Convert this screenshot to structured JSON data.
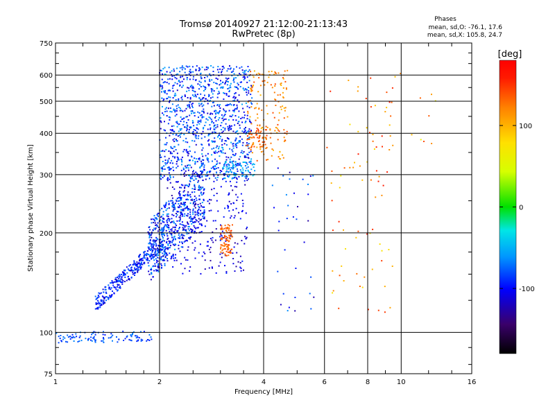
{
  "chart_data": {
    "type": "scatter",
    "title": "Tromsø 20140927 21:12:00-21:13:43",
    "subtitle": "RwPretec (8p)",
    "xlabel": "Frequency [MHz]",
    "ylabel": "Stationary phase Virtual Height [km]",
    "xscale": "log",
    "yscale": "log",
    "xlim": [
      1,
      16
    ],
    "ylim": [
      75,
      750
    ],
    "xticks": [
      1,
      2,
      4,
      6,
      8,
      10,
      16
    ],
    "xtick_labels": [
      "1",
      "2",
      "4",
      "6",
      "8",
      "10",
      "16"
    ],
    "yticks": [
      75,
      100,
      200,
      300,
      400,
      500,
      600,
      750
    ],
    "ytick_labels": [
      "75",
      "100",
      "200",
      "300",
      "400",
      "500",
      "600",
      "750"
    ],
    "grid": true,
    "phase_stats": {
      "heading": "Phases",
      "line_o": "mean, sd,O: -76.1, 17.6",
      "line_x": "mean, sd,X: 105.8, 24.7"
    },
    "colorbar": {
      "label": "[deg]",
      "range": [
        -180,
        180
      ],
      "ticks": [
        100,
        0,
        -100
      ],
      "tick_labels": [
        "100",
        "0",
        "-100"
      ]
    },
    "clusters": [
      {
        "f": [
          1.0,
          1.9
        ],
        "h": [
          93,
          101
        ],
        "phase": [
          -95,
          -65
        ],
        "n": 110,
        "trend": 0.05
      },
      {
        "f": [
          1.3,
          2.05
        ],
        "h": [
          115,
          200
        ],
        "phase": [
          -120,
          -70
        ],
        "n": 320,
        "trend": 0.8
      },
      {
        "f": [
          1.85,
          2.7
        ],
        "h": [
          140,
          330
        ],
        "phase": [
          -125,
          -55
        ],
        "n": 600,
        "trend": 0.5
      },
      {
        "f": [
          2.0,
          3.7
        ],
        "h": [
          290,
          640
        ],
        "phase": [
          -120,
          -50
        ],
        "n": 1100,
        "trend": 0
      },
      {
        "f": [
          3.05,
          3.8
        ],
        "h": [
          295,
          330
        ],
        "phase": [
          -60,
          -40
        ],
        "n": 60,
        "trend": 0
      },
      {
        "f": [
          2.1,
          3.6
        ],
        "h": [
          150,
          300
        ],
        "phase": [
          -130,
          -90
        ],
        "n": 250,
        "trend": 0
      },
      {
        "f": [
          3.0,
          3.25
        ],
        "h": [
          170,
          215
        ],
        "phase": [
          120,
          145
        ],
        "n": 90,
        "trend": 0
      },
      {
        "f": [
          3.6,
          4.7
        ],
        "h": [
          330,
          620
        ],
        "phase": [
          95,
          145
        ],
        "n": 160,
        "trend": 0
      },
      {
        "f": [
          3.55,
          4.1
        ],
        "h": [
          360,
          420
        ],
        "phase": [
          125,
          150
        ],
        "n": 45,
        "trend": 0
      },
      {
        "f": [
          4.2,
          5.6
        ],
        "h": [
          110,
          320
        ],
        "phase": [
          -130,
          -60
        ],
        "n": 35,
        "trend": 0
      },
      {
        "f": [
          6.1,
          9.5
        ],
        "h": [
          115,
          600
        ],
        "phase": [
          70,
          170
        ],
        "n": 75,
        "trend": 0
      },
      {
        "f": [
          7.5,
          13.5
        ],
        "h": [
          360,
          610
        ],
        "phase": [
          60,
          160
        ],
        "n": 18,
        "trend": 0
      }
    ]
  }
}
